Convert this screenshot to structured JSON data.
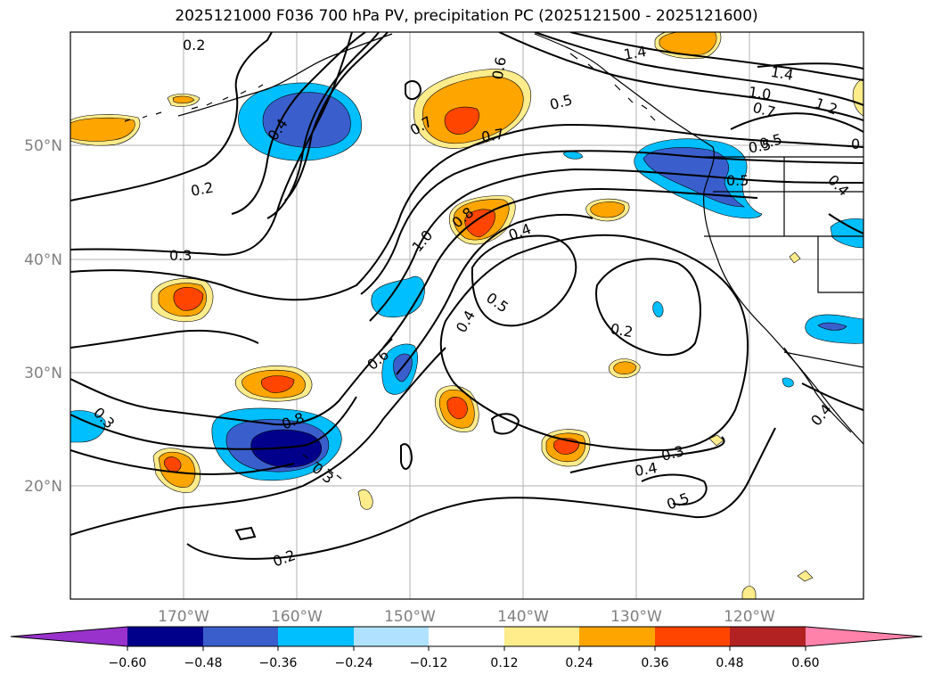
{
  "title": "2025121000 F036 700 hPa PV, precipitation PC (2025121500 - 2025121600)",
  "lat_ticks": [
    "50°N",
    "40°N",
    "30°N",
    "20°N"
  ],
  "lon_ticks": [
    "170°W",
    "160°W",
    "150°W",
    "140°W",
    "130°W",
    "120°W"
  ],
  "contour_labels": [
    "0.2",
    "0.4",
    "0.6",
    "0.5",
    "1.4",
    "1.4",
    "1.0",
    "0.7",
    "1.2",
    "0.5",
    "0.7",
    "0.7",
    "0.5",
    "0.2",
    "0.4",
    "1.0",
    "0.8",
    "0.4",
    "0.3",
    "0.5",
    "0.4",
    "0.6",
    "0.2",
    "0.3",
    "0.8",
    "0.3",
    "0.3",
    "0.4",
    "0.5",
    "0.2",
    "0.4",
    "0.5",
    "0"
  ],
  "colorbar": {
    "labels": [
      "−0.60",
      "−0.48",
      "−0.36",
      "−0.24",
      "−0.12",
      "0.12",
      "0.24",
      "0.36",
      "0.48",
      "0.60"
    ],
    "colors": [
      "#9932cc",
      "#00008b",
      "#3a5fcd",
      "#00bfff",
      "#b0e2ff",
      "#ffffff",
      "#ffec8b",
      "#ffa500",
      "#ff4500",
      "#b22222",
      "#ff82ab"
    ]
  },
  "fill_colors": {
    "neg1": "#00bfff",
    "neg2": "#3a5fcd",
    "neg3": "#00008b",
    "pos0": "#ffec8b",
    "pos1": "#ffa500",
    "pos2": "#ff4500"
  }
}
